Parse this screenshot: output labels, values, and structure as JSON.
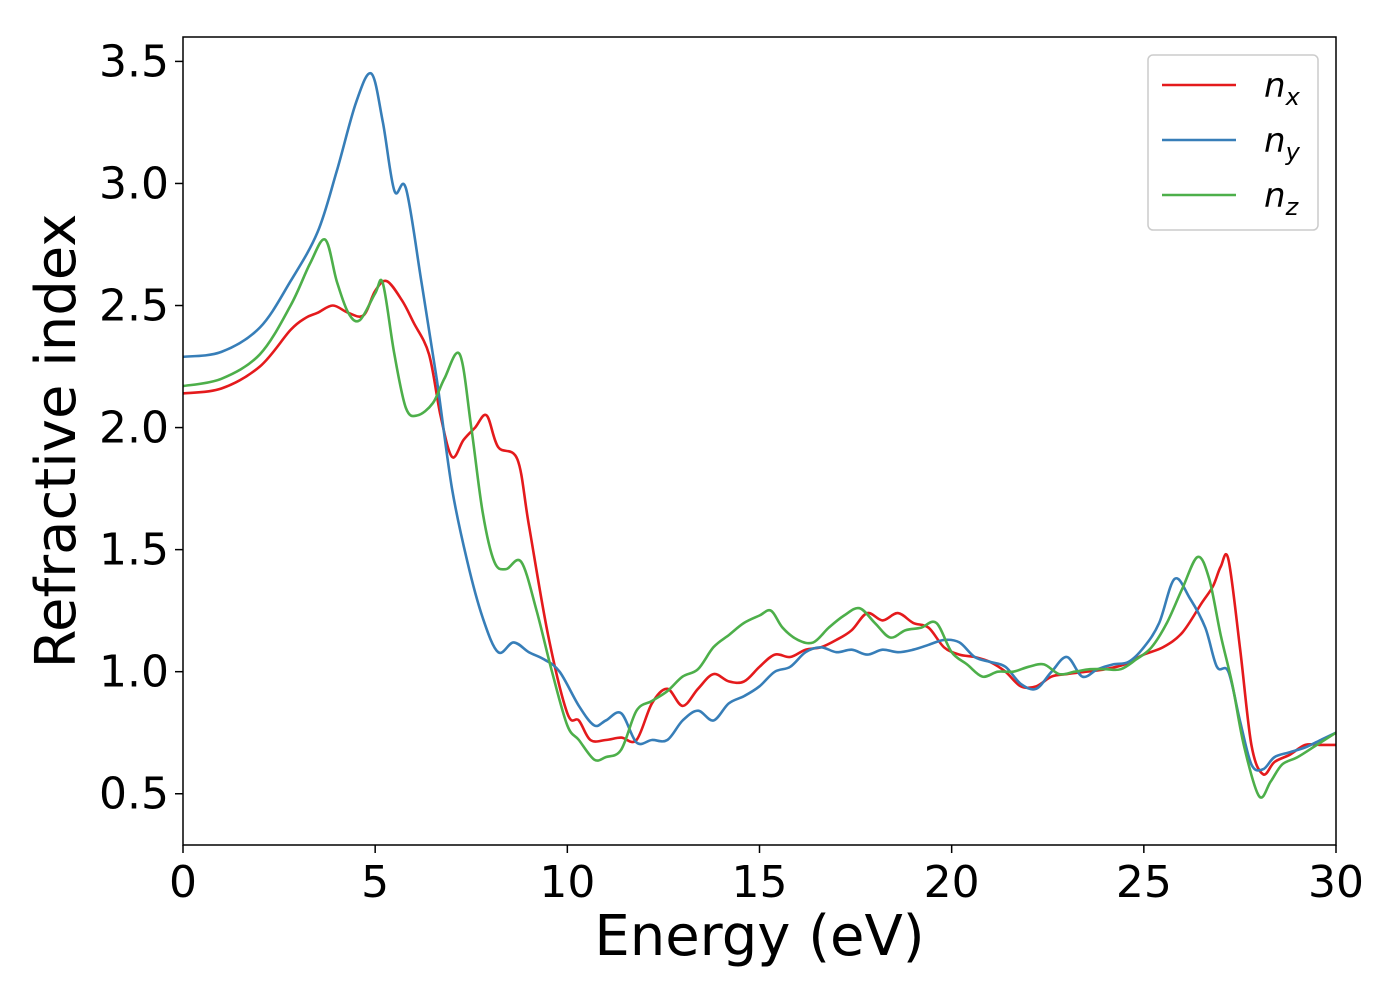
{
  "chart_data": {
    "type": "line",
    "title": "",
    "xlabel": "Energy (eV)",
    "ylabel": "Refractive index",
    "xlim": [
      0,
      30
    ],
    "ylim": [
      0.29,
      3.6
    ],
    "xticks": [
      0,
      5,
      10,
      15,
      20,
      25,
      30
    ],
    "xtick_labels": [
      "0",
      "5",
      "10",
      "15",
      "20",
      "25",
      "30"
    ],
    "yticks": [
      0.5,
      1.0,
      1.5,
      2.0,
      2.5,
      3.0,
      3.5
    ],
    "ytick_labels": [
      "0.5",
      "1.0",
      "1.5",
      "2.0",
      "2.5",
      "3.0",
      "3.5"
    ],
    "grid": false,
    "legend_position": "top-right",
    "series": [
      {
        "name": "n_x",
        "label_base": "n",
        "label_sub": "x",
        "color": "#e41a1c",
        "points": [
          [
            0,
            2.14
          ],
          [
            1,
            2.16
          ],
          [
            2,
            2.25
          ],
          [
            2.8,
            2.4
          ],
          [
            3.2,
            2.45
          ],
          [
            3.5,
            2.47
          ],
          [
            3.9,
            2.5
          ],
          [
            4.3,
            2.47
          ],
          [
            4.7,
            2.46
          ],
          [
            5.0,
            2.56
          ],
          [
            5.3,
            2.6
          ],
          [
            5.7,
            2.52
          ],
          [
            6.0,
            2.43
          ],
          [
            6.4,
            2.3
          ],
          [
            6.7,
            2.05
          ],
          [
            7.0,
            1.88
          ],
          [
            7.3,
            1.95
          ],
          [
            7.6,
            2.0
          ],
          [
            7.9,
            2.05
          ],
          [
            8.2,
            1.92
          ],
          [
            8.7,
            1.87
          ],
          [
            9.0,
            1.6
          ],
          [
            9.5,
            1.15
          ],
          [
            10.0,
            0.83
          ],
          [
            10.3,
            0.8
          ],
          [
            10.6,
            0.72
          ],
          [
            11.0,
            0.72
          ],
          [
            11.4,
            0.73
          ],
          [
            11.8,
            0.72
          ],
          [
            12.2,
            0.87
          ],
          [
            12.6,
            0.93
          ],
          [
            13.0,
            0.86
          ],
          [
            13.4,
            0.93
          ],
          [
            13.8,
            0.99
          ],
          [
            14.2,
            0.96
          ],
          [
            14.6,
            0.96
          ],
          [
            15.0,
            1.02
          ],
          [
            15.4,
            1.07
          ],
          [
            15.8,
            1.06
          ],
          [
            16.2,
            1.09
          ],
          [
            16.6,
            1.1
          ],
          [
            17.0,
            1.13
          ],
          [
            17.4,
            1.17
          ],
          [
            17.8,
            1.24
          ],
          [
            18.2,
            1.21
          ],
          [
            18.6,
            1.24
          ],
          [
            19.0,
            1.2
          ],
          [
            19.4,
            1.18
          ],
          [
            19.8,
            1.1
          ],
          [
            20.2,
            1.07
          ],
          [
            20.6,
            1.06
          ],
          [
            21.0,
            1.04
          ],
          [
            21.4,
            1.0
          ],
          [
            21.8,
            0.94
          ],
          [
            22.2,
            0.94
          ],
          [
            22.6,
            0.98
          ],
          [
            23.0,
            0.99
          ],
          [
            23.5,
            1.0
          ],
          [
            24.0,
            1.01
          ],
          [
            24.5,
            1.03
          ],
          [
            25.0,
            1.07
          ],
          [
            25.5,
            1.1
          ],
          [
            26.0,
            1.16
          ],
          [
            26.5,
            1.28
          ],
          [
            26.8,
            1.35
          ],
          [
            27.0,
            1.43
          ],
          [
            27.2,
            1.46
          ],
          [
            27.5,
            1.1
          ],
          [
            27.8,
            0.7
          ],
          [
            28.1,
            0.58
          ],
          [
            28.4,
            0.63
          ],
          [
            28.8,
            0.66
          ],
          [
            29.2,
            0.7
          ],
          [
            29.6,
            0.7
          ],
          [
            30.0,
            0.7
          ]
        ]
      },
      {
        "name": "n_y",
        "label_base": "n",
        "label_sub": "y",
        "color": "#377eb8",
        "points": [
          [
            0,
            2.29
          ],
          [
            1,
            2.31
          ],
          [
            2,
            2.41
          ],
          [
            2.8,
            2.6
          ],
          [
            3.5,
            2.8
          ],
          [
            4.0,
            3.05
          ],
          [
            4.5,
            3.33
          ],
          [
            4.9,
            3.45
          ],
          [
            5.2,
            3.25
          ],
          [
            5.5,
            2.97
          ],
          [
            5.8,
            2.98
          ],
          [
            6.2,
            2.6
          ],
          [
            6.6,
            2.2
          ],
          [
            7.0,
            1.75
          ],
          [
            7.4,
            1.45
          ],
          [
            7.8,
            1.22
          ],
          [
            8.2,
            1.08
          ],
          [
            8.6,
            1.12
          ],
          [
            9.0,
            1.08
          ],
          [
            9.4,
            1.05
          ],
          [
            9.8,
            1.0
          ],
          [
            10.3,
            0.86
          ],
          [
            10.7,
            0.78
          ],
          [
            11.0,
            0.8
          ],
          [
            11.4,
            0.83
          ],
          [
            11.8,
            0.71
          ],
          [
            12.2,
            0.72
          ],
          [
            12.6,
            0.72
          ],
          [
            13.0,
            0.8
          ],
          [
            13.4,
            0.84
          ],
          [
            13.8,
            0.8
          ],
          [
            14.2,
            0.87
          ],
          [
            14.6,
            0.9
          ],
          [
            15.0,
            0.94
          ],
          [
            15.4,
            1.0
          ],
          [
            15.8,
            1.02
          ],
          [
            16.2,
            1.08
          ],
          [
            16.6,
            1.1
          ],
          [
            17.0,
            1.08
          ],
          [
            17.4,
            1.09
          ],
          [
            17.8,
            1.07
          ],
          [
            18.2,
            1.09
          ],
          [
            18.6,
            1.08
          ],
          [
            19.0,
            1.09
          ],
          [
            19.4,
            1.11
          ],
          [
            19.8,
            1.13
          ],
          [
            20.2,
            1.12
          ],
          [
            20.6,
            1.06
          ],
          [
            21.0,
            1.04
          ],
          [
            21.4,
            1.02
          ],
          [
            21.8,
            0.95
          ],
          [
            22.2,
            0.93
          ],
          [
            22.6,
            1.0
          ],
          [
            23.0,
            1.06
          ],
          [
            23.4,
            0.98
          ],
          [
            23.8,
            1.01
          ],
          [
            24.2,
            1.03
          ],
          [
            24.6,
            1.04
          ],
          [
            25.0,
            1.1
          ],
          [
            25.4,
            1.2
          ],
          [
            25.8,
            1.38
          ],
          [
            26.2,
            1.3
          ],
          [
            26.6,
            1.18
          ],
          [
            26.9,
            1.02
          ],
          [
            27.2,
            1.0
          ],
          [
            27.5,
            0.8
          ],
          [
            27.8,
            0.62
          ],
          [
            28.1,
            0.6
          ],
          [
            28.4,
            0.65
          ],
          [
            28.8,
            0.67
          ],
          [
            29.2,
            0.69
          ],
          [
            29.6,
            0.72
          ],
          [
            30.0,
            0.75
          ]
        ]
      },
      {
        "name": "n_z",
        "label_base": "n",
        "label_sub": "z",
        "color": "#4daf4a",
        "points": [
          [
            0,
            2.17
          ],
          [
            1,
            2.2
          ],
          [
            2,
            2.3
          ],
          [
            2.8,
            2.5
          ],
          [
            3.3,
            2.67
          ],
          [
            3.7,
            2.77
          ],
          [
            4.0,
            2.6
          ],
          [
            4.3,
            2.47
          ],
          [
            4.6,
            2.44
          ],
          [
            5.0,
            2.55
          ],
          [
            5.2,
            2.59
          ],
          [
            5.5,
            2.3
          ],
          [
            5.8,
            2.08
          ],
          [
            6.1,
            2.05
          ],
          [
            6.5,
            2.1
          ],
          [
            6.8,
            2.2
          ],
          [
            7.2,
            2.3
          ],
          [
            7.5,
            2.0
          ],
          [
            7.8,
            1.65
          ],
          [
            8.1,
            1.45
          ],
          [
            8.4,
            1.42
          ],
          [
            8.8,
            1.45
          ],
          [
            9.2,
            1.25
          ],
          [
            9.6,
            1.0
          ],
          [
            10.0,
            0.78
          ],
          [
            10.3,
            0.72
          ],
          [
            10.7,
            0.64
          ],
          [
            11.0,
            0.65
          ],
          [
            11.4,
            0.68
          ],
          [
            11.8,
            0.84
          ],
          [
            12.2,
            0.88
          ],
          [
            12.6,
            0.92
          ],
          [
            13.0,
            0.98
          ],
          [
            13.4,
            1.01
          ],
          [
            13.8,
            1.1
          ],
          [
            14.2,
            1.15
          ],
          [
            14.6,
            1.2
          ],
          [
            15.0,
            1.23
          ],
          [
            15.3,
            1.25
          ],
          [
            15.6,
            1.18
          ],
          [
            16.0,
            1.13
          ],
          [
            16.4,
            1.12
          ],
          [
            16.8,
            1.18
          ],
          [
            17.2,
            1.23
          ],
          [
            17.6,
            1.26
          ],
          [
            18.0,
            1.2
          ],
          [
            18.4,
            1.14
          ],
          [
            18.8,
            1.17
          ],
          [
            19.2,
            1.18
          ],
          [
            19.6,
            1.2
          ],
          [
            20.0,
            1.08
          ],
          [
            20.4,
            1.03
          ],
          [
            20.8,
            0.98
          ],
          [
            21.2,
            1.0
          ],
          [
            21.6,
            1.0
          ],
          [
            22.0,
            1.02
          ],
          [
            22.4,
            1.03
          ],
          [
            22.8,
            0.99
          ],
          [
            23.2,
            1.0
          ],
          [
            23.6,
            1.01
          ],
          [
            24.0,
            1.01
          ],
          [
            24.4,
            1.01
          ],
          [
            24.8,
            1.05
          ],
          [
            25.2,
            1.1
          ],
          [
            25.6,
            1.2
          ],
          [
            26.0,
            1.34
          ],
          [
            26.4,
            1.47
          ],
          [
            26.7,
            1.38
          ],
          [
            27.0,
            1.15
          ],
          [
            27.3,
            0.95
          ],
          [
            27.6,
            0.7
          ],
          [
            28.0,
            0.49
          ],
          [
            28.3,
            0.55
          ],
          [
            28.6,
            0.62
          ],
          [
            29.0,
            0.65
          ],
          [
            29.5,
            0.7
          ],
          [
            30.0,
            0.75
          ]
        ]
      }
    ]
  }
}
